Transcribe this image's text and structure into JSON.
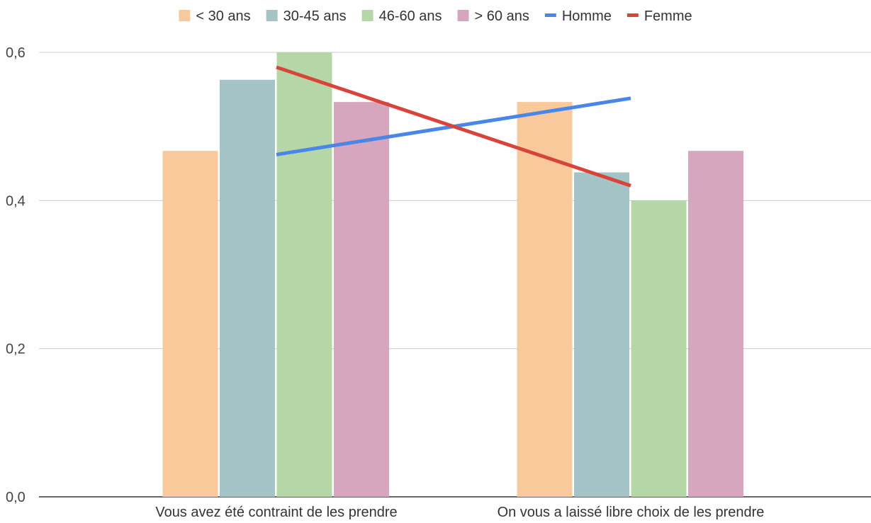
{
  "chart_data": {
    "type": "bar",
    "categories": [
      "Vous avez été contraint de les prendre",
      "On vous a laissé libre choix de les prendre"
    ],
    "series": [
      {
        "name": "< 30 ans",
        "kind": "bar",
        "color": "#f8c99a",
        "values": [
          0.467,
          0.533
        ]
      },
      {
        "name": "30-45 ans",
        "kind": "bar",
        "color": "#a3c3c7",
        "values": [
          0.563,
          0.438
        ]
      },
      {
        "name": "46-60 ans",
        "kind": "bar",
        "color": "#b5d6a7",
        "values": [
          0.6,
          0.4
        ]
      },
      {
        "name": "> 60 ans",
        "kind": "bar",
        "color": "#d5a6bd",
        "values": [
          0.533,
          0.467
        ]
      },
      {
        "name": "Homme",
        "kind": "line",
        "color": "#4a86e8",
        "values": [
          0.462,
          0.538
        ]
      },
      {
        "name": "Femme",
        "kind": "line",
        "color": "#d9443a",
        "values": [
          0.58,
          0.42
        ]
      }
    ],
    "y_ticks": [
      "0,0",
      "0,2",
      "0,4",
      "0,6"
    ],
    "ylim": [
      0,
      0.6
    ],
    "grid": true,
    "legend_position": "top",
    "title": "",
    "xlabel": "",
    "ylabel": ""
  }
}
